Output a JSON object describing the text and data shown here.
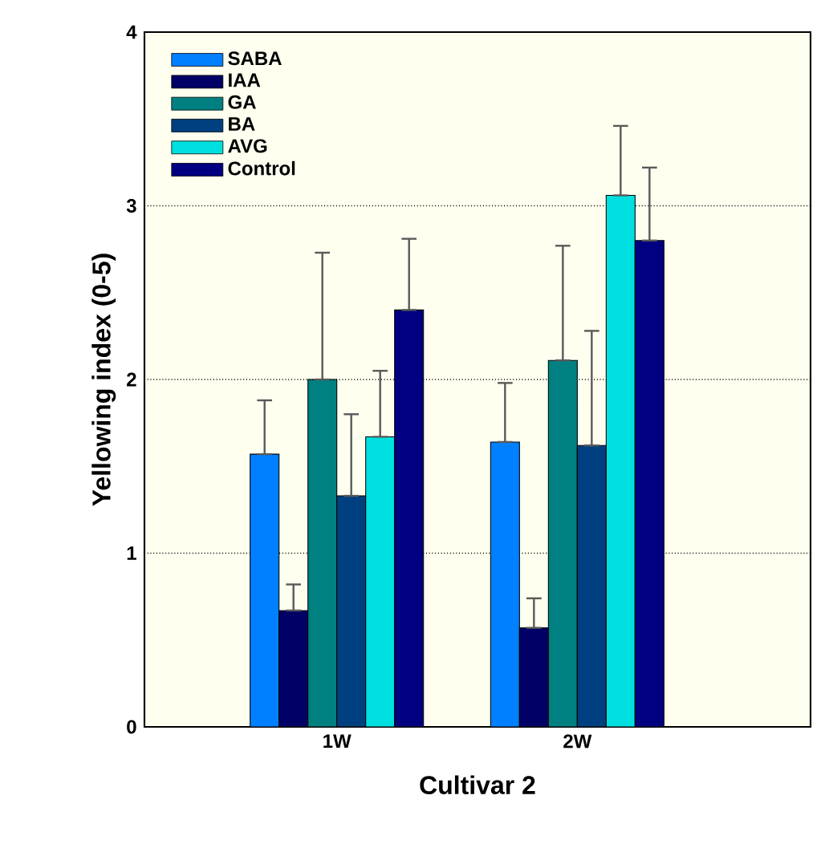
{
  "chart_data": {
    "type": "bar",
    "xlabel": "Cultivar 2",
    "ylabel": "Yellowing index (0-5)",
    "categories": [
      "1W",
      "2W"
    ],
    "ylim": [
      0,
      4
    ],
    "yticks": [
      0,
      1,
      2,
      3,
      4
    ],
    "grid": "y",
    "legend": "top left",
    "series": [
      {
        "name": "SABA",
        "color": "#0080ff",
        "values": [
          1.57,
          1.64
        ],
        "errors": [
          [
            1.57,
            1.88
          ],
          [
            1.64,
            1.98
          ]
        ]
      },
      {
        "name": "IAA",
        "color": "#000066",
        "values": [
          0.67,
          0.57
        ],
        "errors": [
          [
            0.67,
            0.82
          ],
          [
            0.57,
            0.74
          ]
        ]
      },
      {
        "name": "GA",
        "color": "#008080",
        "values": [
          2.0,
          2.11
        ],
        "errors": [
          [
            2.0,
            2.73
          ],
          [
            2.11,
            2.77
          ]
        ]
      },
      {
        "name": "BA",
        "color": "#004080",
        "values": [
          1.33,
          1.62
        ],
        "errors": [
          [
            1.33,
            1.8
          ],
          [
            1.62,
            2.28
          ]
        ]
      },
      {
        "name": "AVG",
        "color": "#00e0e0",
        "values": [
          1.67,
          3.06
        ],
        "errors": [
          [
            1.67,
            2.05
          ],
          [
            3.06,
            3.46
          ]
        ]
      },
      {
        "name": "Control",
        "color": "#000080",
        "values": [
          2.4,
          2.8
        ],
        "errors": [
          [
            2.4,
            2.81
          ],
          [
            2.8,
            3.22
          ]
        ]
      }
    ]
  }
}
